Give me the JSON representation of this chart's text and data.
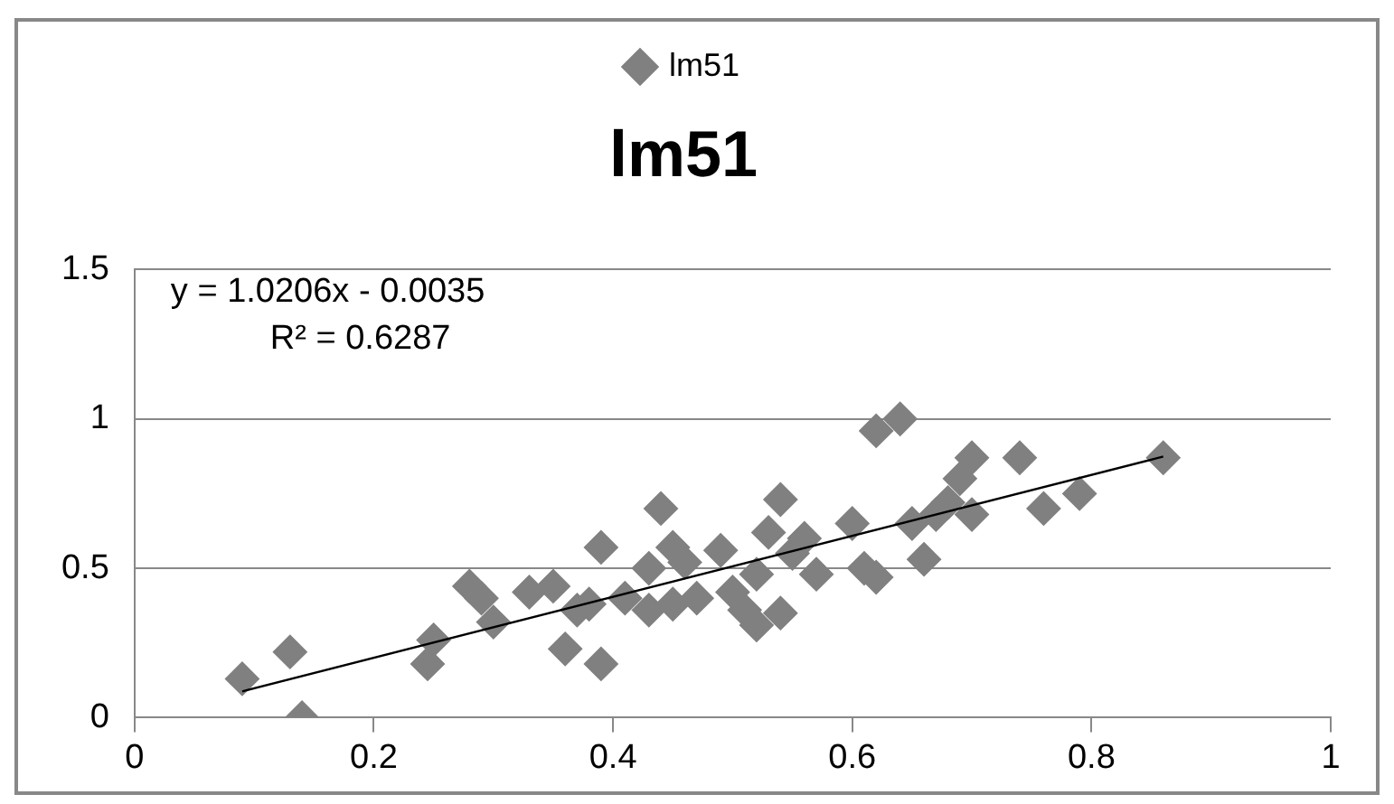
{
  "chart_data": {
    "type": "scatter",
    "title": "lm51",
    "legend": "top",
    "grid": "y",
    "marker": "diamond",
    "xlim": [
      0,
      1
    ],
    "xticks": [
      0,
      0.2,
      0.4,
      0.6,
      0.8,
      1
    ],
    "ylim": [
      0,
      1.5
    ],
    "yticks": [
      0,
      0.5,
      1,
      1.5
    ],
    "annotations": [
      "y = 1.0206x - 0.0035",
      "R² = 0.6287"
    ],
    "series": [
      {
        "name": "lm51",
        "color": "#808080",
        "x": [
          0.09,
          0.13,
          0.14,
          0.245,
          0.25,
          0.28,
          0.29,
          0.3,
          0.33,
          0.35,
          0.36,
          0.37,
          0.38,
          0.39,
          0.39,
          0.41,
          0.43,
          0.43,
          0.44,
          0.45,
          0.45,
          0.46,
          0.47,
          0.49,
          0.5,
          0.51,
          0.52,
          0.52,
          0.53,
          0.54,
          0.54,
          0.55,
          0.56,
          0.57,
          0.6,
          0.61,
          0.62,
          0.62,
          0.64,
          0.65,
          0.66,
          0.67,
          0.68,
          0.69,
          0.7,
          0.7,
          0.74,
          0.76,
          0.79,
          0.86
        ],
        "values": [
          0.13,
          0.22,
          0.0,
          0.18,
          0.26,
          0.44,
          0.4,
          0.32,
          0.42,
          0.44,
          0.23,
          0.36,
          0.38,
          0.57,
          0.18,
          0.4,
          0.36,
          0.5,
          0.7,
          0.57,
          0.38,
          0.52,
          0.4,
          0.56,
          0.42,
          0.36,
          0.31,
          0.48,
          0.62,
          0.73,
          0.35,
          0.55,
          0.6,
          0.48,
          0.65,
          0.5,
          0.47,
          0.96,
          1.0,
          0.65,
          0.53,
          0.68,
          0.72,
          0.8,
          0.87,
          0.68,
          0.87,
          0.7,
          0.75,
          0.87
        ]
      },
      {
        "type": "line",
        "color": "#000000",
        "marker": "none",
        "x": [
          0.09,
          0.86
        ],
        "values": [
          0.088,
          0.874
        ]
      }
    ]
  }
}
